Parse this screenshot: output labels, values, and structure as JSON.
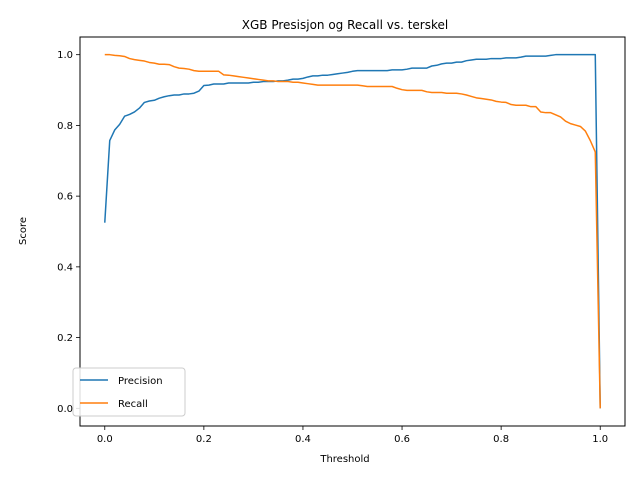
{
  "chart_data": {
    "type": "line",
    "title": "XGB Presisjon og Recall vs. terskel",
    "xlabel": "Threshold",
    "ylabel": "Score",
    "xlim": [
      -0.05,
      1.05
    ],
    "ylim": [
      -0.05,
      1.05
    ],
    "xticks": [
      "0.0",
      "0.2",
      "0.4",
      "0.6",
      "0.8",
      "1.0"
    ],
    "xtick_values": [
      0.0,
      0.2,
      0.4,
      0.6,
      0.8,
      1.0
    ],
    "yticks": [
      "0.0",
      "0.2",
      "0.4",
      "0.6",
      "0.8",
      "1.0"
    ],
    "ytick_values": [
      0.0,
      0.2,
      0.4,
      0.6,
      0.8,
      1.0
    ],
    "grid": false,
    "legend_position": "lower-left",
    "series": [
      {
        "name": "Precision",
        "color": "#1f77b4",
        "points": [
          [
            0.0,
            0.525
          ],
          [
            0.01,
            0.757
          ],
          [
            0.02,
            0.787
          ],
          [
            0.03,
            0.803
          ],
          [
            0.04,
            0.826
          ],
          [
            0.05,
            0.831
          ],
          [
            0.06,
            0.838
          ],
          [
            0.07,
            0.849
          ],
          [
            0.08,
            0.865
          ],
          [
            0.09,
            0.869
          ],
          [
            0.1,
            0.871
          ],
          [
            0.11,
            0.877
          ],
          [
            0.12,
            0.881
          ],
          [
            0.13,
            0.884
          ],
          [
            0.14,
            0.886
          ],
          [
            0.15,
            0.886
          ],
          [
            0.16,
            0.889
          ],
          [
            0.17,
            0.889
          ],
          [
            0.18,
            0.891
          ],
          [
            0.19,
            0.897
          ],
          [
            0.2,
            0.913
          ],
          [
            0.21,
            0.914
          ],
          [
            0.22,
            0.917
          ],
          [
            0.23,
            0.917
          ],
          [
            0.24,
            0.917
          ],
          [
            0.25,
            0.92
          ],
          [
            0.26,
            0.92
          ],
          [
            0.27,
            0.92
          ],
          [
            0.28,
            0.92
          ],
          [
            0.29,
            0.92
          ],
          [
            0.3,
            0.922
          ],
          [
            0.31,
            0.922
          ],
          [
            0.32,
            0.924
          ],
          [
            0.33,
            0.924
          ],
          [
            0.34,
            0.924
          ],
          [
            0.35,
            0.926
          ],
          [
            0.36,
            0.926
          ],
          [
            0.37,
            0.928
          ],
          [
            0.38,
            0.931
          ],
          [
            0.39,
            0.931
          ],
          [
            0.4,
            0.933
          ],
          [
            0.41,
            0.937
          ],
          [
            0.42,
            0.94
          ],
          [
            0.43,
            0.94
          ],
          [
            0.44,
            0.942
          ],
          [
            0.45,
            0.942
          ],
          [
            0.46,
            0.944
          ],
          [
            0.47,
            0.946
          ],
          [
            0.48,
            0.948
          ],
          [
            0.49,
            0.95
          ],
          [
            0.5,
            0.953
          ],
          [
            0.51,
            0.955
          ],
          [
            0.52,
            0.955
          ],
          [
            0.53,
            0.955
          ],
          [
            0.54,
            0.955
          ],
          [
            0.55,
            0.955
          ],
          [
            0.56,
            0.955
          ],
          [
            0.57,
            0.955
          ],
          [
            0.58,
            0.957
          ],
          [
            0.59,
            0.957
          ],
          [
            0.6,
            0.957
          ],
          [
            0.61,
            0.959
          ],
          [
            0.62,
            0.962
          ],
          [
            0.63,
            0.962
          ],
          [
            0.64,
            0.962
          ],
          [
            0.65,
            0.962
          ],
          [
            0.66,
            0.968
          ],
          [
            0.67,
            0.97
          ],
          [
            0.68,
            0.974
          ],
          [
            0.69,
            0.976
          ],
          [
            0.7,
            0.976
          ],
          [
            0.71,
            0.979
          ],
          [
            0.72,
            0.979
          ],
          [
            0.73,
            0.983
          ],
          [
            0.74,
            0.985
          ],
          [
            0.75,
            0.987
          ],
          [
            0.76,
            0.987
          ],
          [
            0.77,
            0.987
          ],
          [
            0.78,
            0.989
          ],
          [
            0.79,
            0.989
          ],
          [
            0.8,
            0.989
          ],
          [
            0.81,
            0.991
          ],
          [
            0.82,
            0.991
          ],
          [
            0.83,
            0.991
          ],
          [
            0.84,
            0.993
          ],
          [
            0.85,
            0.996
          ],
          [
            0.86,
            0.996
          ],
          [
            0.87,
            0.996
          ],
          [
            0.88,
            0.996
          ],
          [
            0.89,
            0.996
          ],
          [
            0.9,
            0.998
          ],
          [
            0.91,
            1.0
          ],
          [
            0.92,
            1.0
          ],
          [
            0.93,
            1.0
          ],
          [
            0.94,
            1.0
          ],
          [
            0.95,
            1.0
          ],
          [
            0.96,
            1.0
          ],
          [
            0.97,
            1.0
          ],
          [
            0.98,
            1.0
          ],
          [
            0.99,
            1.0
          ],
          [
            1.0,
            0.0
          ]
        ]
      },
      {
        "name": "Recall",
        "color": "#ff7f0e",
        "points": [
          [
            0.0,
            1.0
          ],
          [
            0.01,
            1.0
          ],
          [
            0.02,
            0.998
          ],
          [
            0.03,
            0.997
          ],
          [
            0.04,
            0.995
          ],
          [
            0.05,
            0.989
          ],
          [
            0.06,
            0.986
          ],
          [
            0.07,
            0.984
          ],
          [
            0.08,
            0.982
          ],
          [
            0.09,
            0.978
          ],
          [
            0.1,
            0.976
          ],
          [
            0.11,
            0.973
          ],
          [
            0.12,
            0.973
          ],
          [
            0.13,
            0.972
          ],
          [
            0.14,
            0.966
          ],
          [
            0.15,
            0.962
          ],
          [
            0.16,
            0.961
          ],
          [
            0.17,
            0.959
          ],
          [
            0.18,
            0.955
          ],
          [
            0.19,
            0.953
          ],
          [
            0.2,
            0.953
          ],
          [
            0.21,
            0.953
          ],
          [
            0.22,
            0.953
          ],
          [
            0.23,
            0.953
          ],
          [
            0.24,
            0.943
          ],
          [
            0.25,
            0.942
          ],
          [
            0.26,
            0.94
          ],
          [
            0.27,
            0.938
          ],
          [
            0.28,
            0.936
          ],
          [
            0.29,
            0.934
          ],
          [
            0.3,
            0.932
          ],
          [
            0.31,
            0.93
          ],
          [
            0.32,
            0.928
          ],
          [
            0.33,
            0.926
          ],
          [
            0.34,
            0.926
          ],
          [
            0.35,
            0.924
          ],
          [
            0.36,
            0.924
          ],
          [
            0.37,
            0.924
          ],
          [
            0.38,
            0.922
          ],
          [
            0.39,
            0.922
          ],
          [
            0.4,
            0.92
          ],
          [
            0.41,
            0.918
          ],
          [
            0.42,
            0.916
          ],
          [
            0.43,
            0.914
          ],
          [
            0.44,
            0.914
          ],
          [
            0.45,
            0.914
          ],
          [
            0.46,
            0.914
          ],
          [
            0.47,
            0.914
          ],
          [
            0.48,
            0.914
          ],
          [
            0.49,
            0.914
          ],
          [
            0.5,
            0.914
          ],
          [
            0.51,
            0.914
          ],
          [
            0.52,
            0.912
          ],
          [
            0.53,
            0.91
          ],
          [
            0.54,
            0.91
          ],
          [
            0.55,
            0.91
          ],
          [
            0.56,
            0.91
          ],
          [
            0.57,
            0.91
          ],
          [
            0.58,
            0.91
          ],
          [
            0.59,
            0.905
          ],
          [
            0.6,
            0.901
          ],
          [
            0.61,
            0.899
          ],
          [
            0.62,
            0.899
          ],
          [
            0.63,
            0.899
          ],
          [
            0.64,
            0.899
          ],
          [
            0.65,
            0.895
          ],
          [
            0.66,
            0.893
          ],
          [
            0.67,
            0.893
          ],
          [
            0.68,
            0.893
          ],
          [
            0.69,
            0.891
          ],
          [
            0.7,
            0.891
          ],
          [
            0.71,
            0.891
          ],
          [
            0.72,
            0.889
          ],
          [
            0.73,
            0.886
          ],
          [
            0.74,
            0.882
          ],
          [
            0.75,
            0.878
          ],
          [
            0.76,
            0.876
          ],
          [
            0.77,
            0.874
          ],
          [
            0.78,
            0.872
          ],
          [
            0.79,
            0.868
          ],
          [
            0.8,
            0.866
          ],
          [
            0.81,
            0.865
          ],
          [
            0.82,
            0.859
          ],
          [
            0.83,
            0.857
          ],
          [
            0.84,
            0.857
          ],
          [
            0.85,
            0.857
          ],
          [
            0.86,
            0.853
          ],
          [
            0.87,
            0.853
          ],
          [
            0.88,
            0.838
          ],
          [
            0.89,
            0.836
          ],
          [
            0.9,
            0.836
          ],
          [
            0.91,
            0.83
          ],
          [
            0.92,
            0.824
          ],
          [
            0.93,
            0.812
          ],
          [
            0.94,
            0.805
          ],
          [
            0.95,
            0.801
          ],
          [
            0.96,
            0.797
          ],
          [
            0.97,
            0.784
          ],
          [
            0.98,
            0.757
          ],
          [
            0.99,
            0.725
          ],
          [
            1.0,
            0.0
          ]
        ]
      }
    ]
  }
}
